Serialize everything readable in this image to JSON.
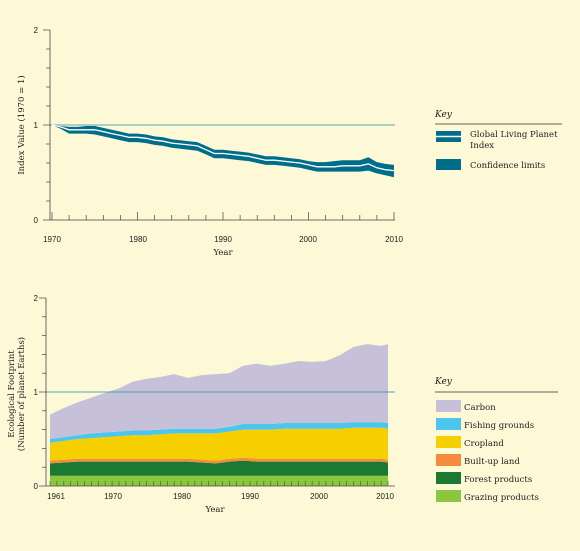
{
  "chart_data": [
    {
      "type": "line",
      "ylabel": "Index Value (1970 = 1)",
      "xlabel": "Year",
      "xlim": [
        1970,
        2010
      ],
      "ylim": [
        0,
        2
      ],
      "x_ticks": [
        "1970",
        "1980",
        "1990",
        "2000",
        "2010"
      ],
      "y_ticks": [
        "0",
        "1",
        "2"
      ],
      "reference_line": 1,
      "key_title": "Key",
      "legend": [
        {
          "label": "Global Living Planet Index",
          "label_lines": [
            "Global Living Planet",
            "Index"
          ],
          "color": "#006e8a",
          "style": "line"
        },
        {
          "label": "Confidence limits",
          "label_lines": [
            "Confidence limits"
          ],
          "color": "#006e8a",
          "style": "box"
        }
      ],
      "x": [
        1970,
        1971,
        1972,
        1973,
        1974,
        1975,
        1976,
        1977,
        1978,
        1979,
        1980,
        1981,
        1982,
        1983,
        1984,
        1985,
        1986,
        1987,
        1988,
        1989,
        1990,
        1991,
        1992,
        1993,
        1994,
        1995,
        1996,
        1997,
        1998,
        1999,
        2000,
        2001,
        2002,
        2003,
        2004,
        2005,
        2006,
        2007,
        2008,
        2009,
        2010
      ],
      "series": [
        {
          "name": "Global Living Planet Index",
          "values": [
            1,
            0.98,
            0.95,
            0.95,
            0.95,
            0.95,
            0.93,
            0.91,
            0.89,
            0.87,
            0.87,
            0.86,
            0.84,
            0.83,
            0.81,
            0.8,
            0.79,
            0.78,
            0.74,
            0.7,
            0.7,
            0.69,
            0.68,
            0.67,
            0.65,
            0.63,
            0.63,
            0.62,
            0.61,
            0.6,
            0.58,
            0.56,
            0.56,
            0.56,
            0.57,
            0.57,
            0.57,
            0.59,
            0.55,
            0.53,
            0.52
          ]
        },
        {
          "name": "Upper confidence limit",
          "values": [
            1,
            0.99,
            0.98,
            0.98,
            0.99,
            0.99,
            0.97,
            0.95,
            0.93,
            0.91,
            0.91,
            0.9,
            0.88,
            0.87,
            0.85,
            0.84,
            0.83,
            0.82,
            0.78,
            0.74,
            0.74,
            0.73,
            0.72,
            0.71,
            0.69,
            0.67,
            0.67,
            0.66,
            0.65,
            0.64,
            0.62,
            0.61,
            0.61,
            0.62,
            0.63,
            0.63,
            0.63,
            0.66,
            0.61,
            0.59,
            0.58
          ]
        },
        {
          "name": "Lower confidence limit",
          "values": [
            1,
            0.96,
            0.91,
            0.91,
            0.91,
            0.9,
            0.88,
            0.86,
            0.84,
            0.82,
            0.82,
            0.81,
            0.79,
            0.78,
            0.76,
            0.75,
            0.74,
            0.73,
            0.69,
            0.65,
            0.65,
            0.64,
            0.63,
            0.62,
            0.6,
            0.58,
            0.58,
            0.57,
            0.56,
            0.55,
            0.53,
            0.51,
            0.51,
            0.51,
            0.51,
            0.51,
            0.51,
            0.52,
            0.49,
            0.47,
            0.45
          ]
        }
      ]
    },
    {
      "type": "area",
      "stacked": true,
      "ylabel_lines": [
        "Ecological Footprint",
        "(Number of planet Earths)"
      ],
      "xlabel": "Year",
      "xlim": [
        1961,
        2010
      ],
      "ylim": [
        0,
        2
      ],
      "x_ticks": [
        "1961",
        "1970",
        "1980",
        "1990",
        "2000",
        "2010"
      ],
      "y_ticks": [
        "0",
        "1",
        "2"
      ],
      "reference_line": 1,
      "key_title": "Key",
      "x": [
        1961,
        1963,
        1965,
        1967,
        1969,
        1971,
        1973,
        1975,
        1977,
        1979,
        1981,
        1983,
        1985,
        1987,
        1989,
        1991,
        1993,
        1995,
        1997,
        1999,
        2001,
        2003,
        2005,
        2007,
        2009,
        2010
      ],
      "series": [
        {
          "name": "Grazing products",
          "color": "#8cc63e",
          "values": [
            0.11,
            0.11,
            0.11,
            0.11,
            0.11,
            0.11,
            0.11,
            0.11,
            0.11,
            0.11,
            0.11,
            0.11,
            0.11,
            0.11,
            0.11,
            0.11,
            0.11,
            0.11,
            0.11,
            0.11,
            0.11,
            0.11,
            0.11,
            0.11,
            0.11,
            0.11
          ]
        },
        {
          "name": "Forest products",
          "color": "#1a7a32",
          "values": [
            0.13,
            0.14,
            0.15,
            0.15,
            0.15,
            0.15,
            0.15,
            0.15,
            0.15,
            0.15,
            0.15,
            0.14,
            0.13,
            0.15,
            0.16,
            0.15,
            0.15,
            0.15,
            0.15,
            0.15,
            0.15,
            0.15,
            0.15,
            0.15,
            0.15,
            0.14
          ]
        },
        {
          "name": "Built-up land",
          "color": "#f58b3c",
          "values": [
            0.03,
            0.03,
            0.03,
            0.03,
            0.03,
            0.03,
            0.03,
            0.03,
            0.03,
            0.03,
            0.03,
            0.03,
            0.03,
            0.03,
            0.03,
            0.03,
            0.03,
            0.03,
            0.03,
            0.03,
            0.03,
            0.03,
            0.03,
            0.03,
            0.03,
            0.03
          ]
        },
        {
          "name": "Cropland",
          "color": "#f5cf00",
          "values": [
            0.19,
            0.2,
            0.21,
            0.22,
            0.23,
            0.24,
            0.25,
            0.25,
            0.26,
            0.27,
            0.27,
            0.28,
            0.29,
            0.29,
            0.3,
            0.31,
            0.31,
            0.32,
            0.32,
            0.32,
            0.32,
            0.32,
            0.33,
            0.33,
            0.33,
            0.33
          ]
        },
        {
          "name": "Fishing grounds",
          "color": "#4cc6ee",
          "values": [
            0.04,
            0.04,
            0.04,
            0.05,
            0.05,
            0.05,
            0.05,
            0.05,
            0.05,
            0.05,
            0.05,
            0.05,
            0.05,
            0.05,
            0.06,
            0.06,
            0.06,
            0.06,
            0.06,
            0.06,
            0.06,
            0.06,
            0.06,
            0.06,
            0.06,
            0.06
          ]
        },
        {
          "name": "Carbon",
          "color": "#c6c1d9",
          "values": [
            0.26,
            0.31,
            0.35,
            0.38,
            0.42,
            0.46,
            0.52,
            0.55,
            0.56,
            0.58,
            0.54,
            0.57,
            0.58,
            0.57,
            0.62,
            0.64,
            0.62,
            0.63,
            0.66,
            0.65,
            0.66,
            0.72,
            0.8,
            0.83,
            0.81,
            0.84
          ]
        }
      ]
    }
  ]
}
